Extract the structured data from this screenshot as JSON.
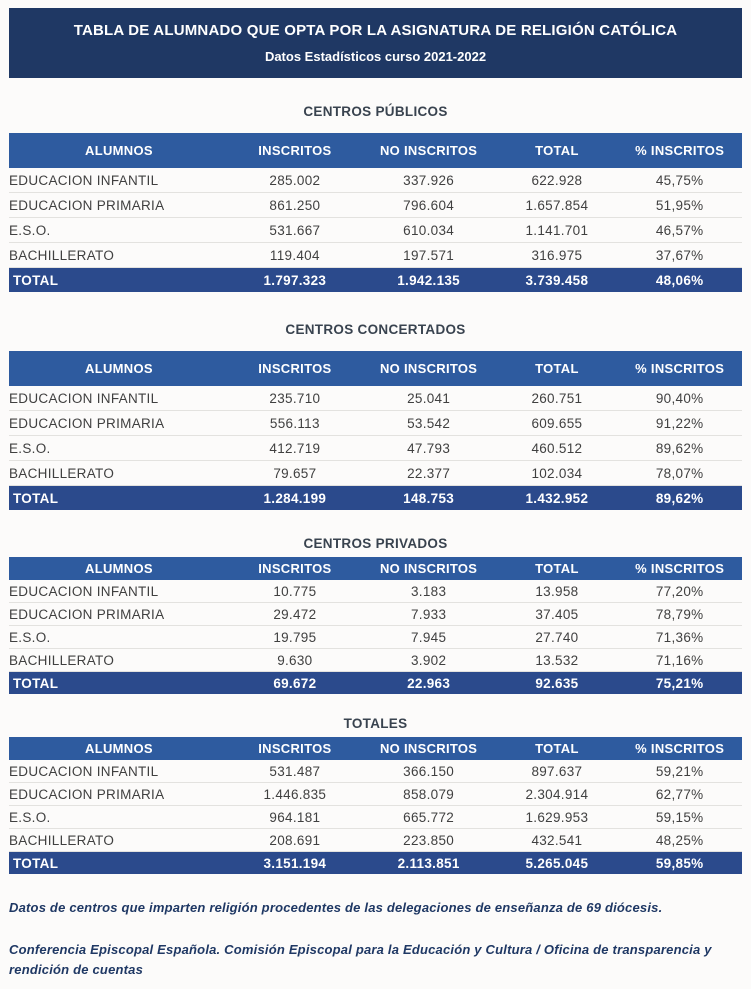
{
  "header": {
    "title": "TABLA DE ALUMNADO QUE OPTA POR LA ASIGNATURA DE RELIGIÓN CATÓLICA",
    "subtitle": "Datos Estadísticos curso 2021-2022"
  },
  "columns": [
    "ALUMNOS",
    "INSCRITOS",
    "NO INSCRITOS",
    "TOTAL",
    "% INSCRITOS"
  ],
  "tables": [
    {
      "title": "CENTROS PÚBLICOS",
      "compact": false,
      "rows": [
        [
          "EDUCACION INFANTIL",
          "285.002",
          "337.926",
          "622.928",
          "45,75%"
        ],
        [
          "EDUCACION PRIMARIA",
          "861.250",
          "796.604",
          "1.657.854",
          "51,95%"
        ],
        [
          "E.S.O.",
          "531.667",
          "610.034",
          "1.141.701",
          "46,57%"
        ],
        [
          "BACHILLERATO",
          "119.404",
          "197.571",
          "316.975",
          "37,67%"
        ]
      ],
      "total": [
        "TOTAL",
        "1.797.323",
        "1.942.135",
        "3.739.458",
        "48,06%"
      ]
    },
    {
      "title": "CENTROS CONCERTADOS",
      "compact": false,
      "rows": [
        [
          "EDUCACION INFANTIL",
          "235.710",
          "25.041",
          "260.751",
          "90,40%"
        ],
        [
          "EDUCACION PRIMARIA",
          "556.113",
          "53.542",
          "609.655",
          "91,22%"
        ],
        [
          "E.S.O.",
          "412.719",
          "47.793",
          "460.512",
          "89,62%"
        ],
        [
          "BACHILLERATO",
          "79.657",
          "22.377",
          "102.034",
          "78,07%"
        ]
      ],
      "total": [
        "TOTAL",
        "1.284.199",
        "148.753",
        "1.432.952",
        "89,62%"
      ]
    },
    {
      "title": "CENTROS PRIVADOS",
      "compact": true,
      "rows": [
        [
          "EDUCACION INFANTIL",
          "10.775",
          "3.183",
          "13.958",
          "77,20%"
        ],
        [
          "EDUCACION PRIMARIA",
          "29.472",
          "7.933",
          "37.405",
          "78,79%"
        ],
        [
          "E.S.O.",
          "19.795",
          "7.945",
          "27.740",
          "71,36%"
        ],
        [
          "BACHILLERATO",
          "9.630",
          "3.902",
          "13.532",
          "71,16%"
        ]
      ],
      "total": [
        "TOTAL",
        "69.672",
        "22.963",
        "92.635",
        "75,21%"
      ]
    },
    {
      "title": "TOTALES",
      "compact": true,
      "rows": [
        [
          "EDUCACION INFANTIL",
          "531.487",
          "366.150",
          "897.637",
          "59,21%"
        ],
        [
          "EDUCACION PRIMARIA",
          "1.446.835",
          "858.079",
          "2.304.914",
          "62,77%"
        ],
        [
          "E.S.O.",
          "964.181",
          "665.772",
          "1.629.953",
          "59,15%"
        ],
        [
          "BACHILLERATO",
          "208.691",
          "223.850",
          "432.541",
          "48,25%"
        ]
      ],
      "total": [
        "TOTAL",
        "3.151.194",
        "2.113.851",
        "5.265.045",
        "59,85%"
      ]
    }
  ],
  "footnotes": [
    "Datos de centros que imparten religión procedentes de las delegaciones de enseñanza de 69 diócesis.",
    "Conferencia Episcopal Española. Comisión Episcopal para la Educación y Cultura / Oficina de transparencia y rendición de cuentas"
  ],
  "colors": {
    "title_bar": "#1F3864",
    "header_row": "#2E5B9F",
    "total_row": "#2B4A8C",
    "body_text": "#404040",
    "section_title": "#39434F",
    "footnote": "#1F3864"
  }
}
